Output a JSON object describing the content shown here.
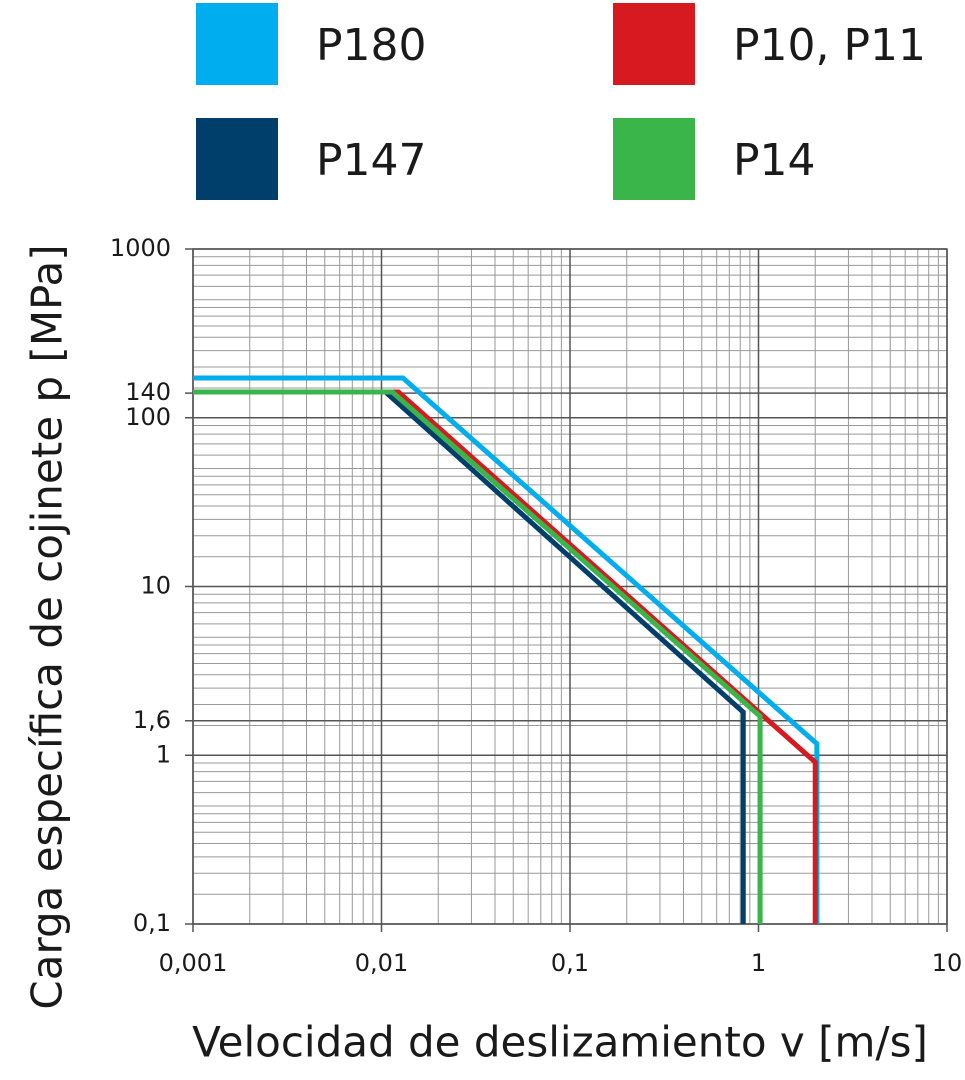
{
  "chart_data": {
    "type": "line",
    "x_label": "Velocidad de deslizamiento v [m/s]",
    "y_label": "Carga específica de cojinete p [MPa]",
    "xscale": "log",
    "yscale": "log",
    "grid": true,
    "legend": "top",
    "xlim": [
      0.001,
      10
    ],
    "ylim": [
      0.1,
      1000
    ],
    "xticks": [
      {
        "value": 0.001,
        "label": "0,001"
      },
      {
        "value": 0.01,
        "label": "0,01"
      },
      {
        "value": 0.1,
        "label": "0,1"
      },
      1,
      10
    ],
    "yticks": [
      {
        "value": 0.1,
        "label": "0,1"
      },
      1,
      {
        "value": 1.6,
        "label": "1,6"
      },
      10,
      100,
      140,
      1000
    ],
    "series": [
      {
        "name": "P180",
        "color": "#00aeef",
        "x": [
          0.001,
          0.013,
          2.04,
          2.04
        ],
        "values": [
          172,
          172,
          1.17,
          0.1
        ]
      },
      {
        "name": "P10, P11",
        "color": "#d71920",
        "x": [
          0.001,
          0.0123,
          2.0,
          2.0
        ],
        "values": [
          142,
          142,
          0.91,
          0.1
        ]
      },
      {
        "name": "P147",
        "color": "#003f6b",
        "x": [
          0.001,
          0.0105,
          0.83,
          0.83
        ],
        "values": [
          142,
          142,
          1.8,
          0.1
        ]
      },
      {
        "name": "P14",
        "color": "#39b54a",
        "x": [
          0.001,
          0.0114,
          1.02,
          1.02
        ],
        "values": [
          142,
          142,
          1.7,
          0.1
        ]
      }
    ]
  }
}
